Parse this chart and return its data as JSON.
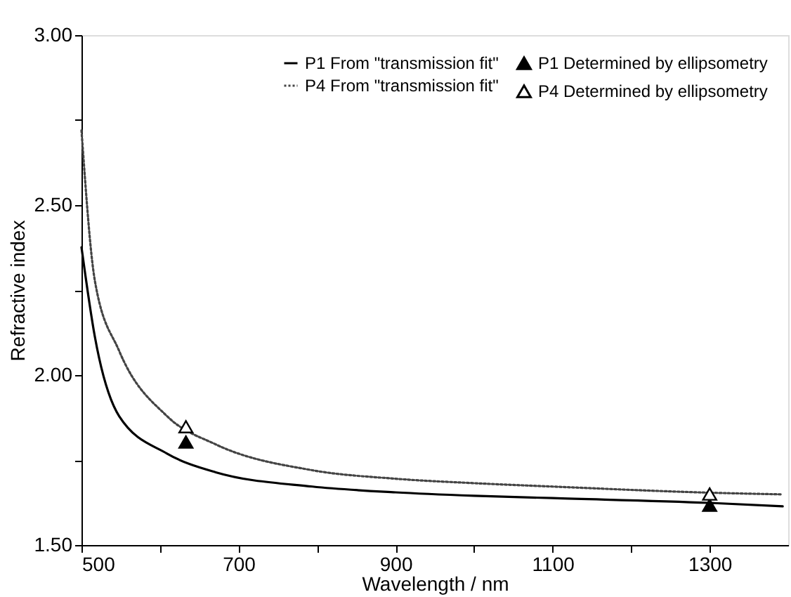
{
  "chart_data": {
    "type": "line",
    "xlabel": "Wavelength / nm",
    "ylabel": "Refractive index",
    "xlim": [
      500,
      1400
    ],
    "ylim": [
      1.5,
      3.0
    ],
    "xticks": [
      500,
      {
        "value": 600,
        "label": null
      },
      700,
      {
        "value": 800,
        "label": null
      },
      900,
      {
        "value": 1000,
        "label": null
      },
      1100,
      {
        "value": 1200,
        "label": null
      },
      1300
    ],
    "yticks": [
      {
        "value": 1.5,
        "label": "1.50"
      },
      {
        "value": 1.75,
        "label": null
      },
      {
        "value": 2.0,
        "label": "2.00"
      },
      {
        "value": 2.25,
        "label": null
      },
      {
        "value": 2.5,
        "label": "2.50"
      },
      {
        "value": 2.75,
        "label": null
      },
      {
        "value": 3.0,
        "label": "3.00"
      }
    ],
    "grid": false,
    "legend": "top right",
    "series": [
      {
        "name": "P1 From \"transmission fit\"",
        "line_style": "solid",
        "marker": "none",
        "color": "#000000",
        "x": [
          500,
          517,
          548,
          609,
          671,
          794,
          900,
          1000,
          1100,
          1300,
          1393
        ],
        "values": [
          2.376,
          2.113,
          1.879,
          1.769,
          1.714,
          1.672,
          1.655,
          1.645,
          1.638,
          1.624,
          1.614
        ]
      },
      {
        "name": "P4 From \"transmission fit\"",
        "line_style": "dotted",
        "marker": "none",
        "color": "#444444",
        "x": [
          500,
          517,
          548,
          609,
          671,
          794,
          900,
          1000,
          1100,
          1300,
          1393
        ],
        "values": [
          2.72,
          2.278,
          2.071,
          1.879,
          1.796,
          1.72,
          1.695,
          1.682,
          1.672,
          1.654,
          1.649
        ]
      },
      {
        "name": "P1 Determined by ellipsometry",
        "type": "scatter",
        "marker": "triangle",
        "color": "#000000",
        "x": [
          633,
          1300
        ],
        "values": [
          1.803,
          1.617
        ]
      },
      {
        "name": "P4 Determined by ellipsometry",
        "type": "scatter",
        "marker": "triangle",
        "color": "#ffffff",
        "x": [
          633,
          1300
        ],
        "values": [
          1.848,
          1.65
        ]
      }
    ]
  }
}
